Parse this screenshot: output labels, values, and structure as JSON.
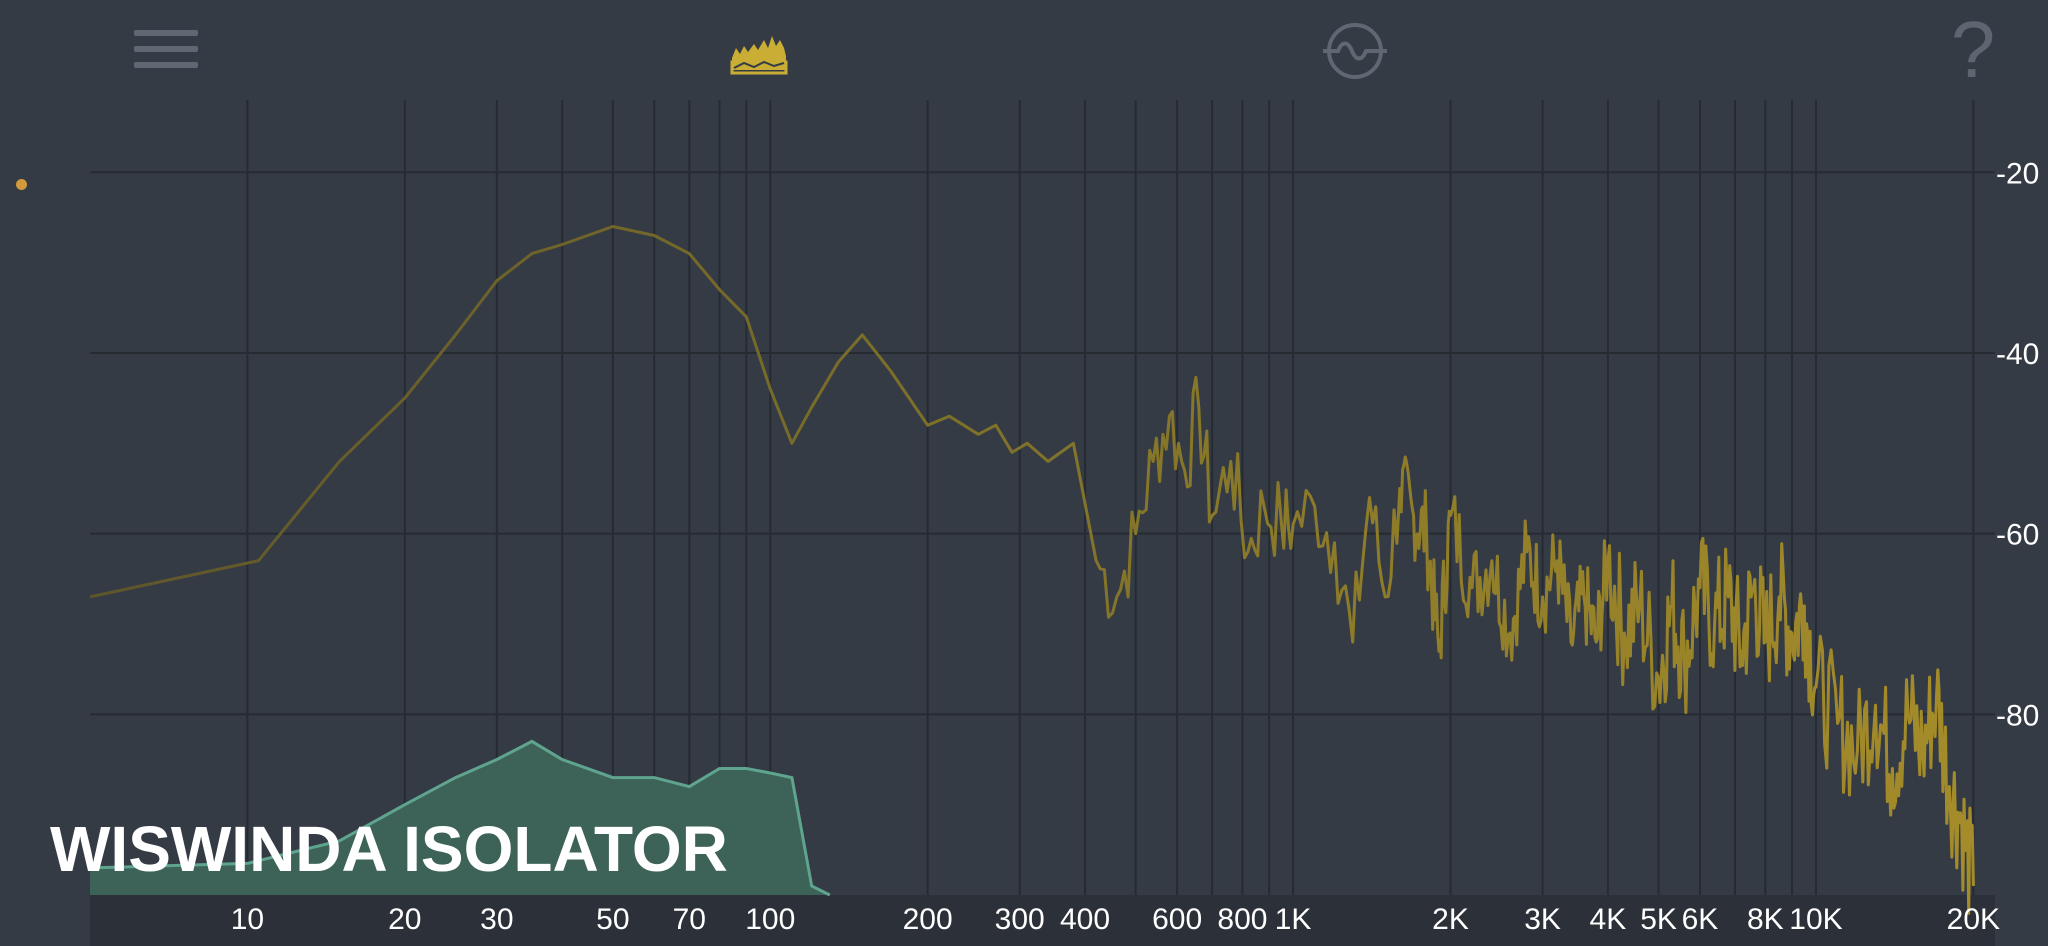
{
  "toolbar": {
    "menu_icon": "hamburger-menu-icon",
    "spectrum_icon": "spectrum-analyzer-icon",
    "wave_icon": "wave-circle-icon",
    "help_icon": "help-icon",
    "help_glyph": "?",
    "accent_color": "#c9ad34"
  },
  "brand": {
    "text": "WISWINDA ISOLATOR"
  },
  "chart_data": {
    "type": "area",
    "title": "",
    "xlabel": "",
    "ylabel": "",
    "x_scale": "log",
    "xlim": [
      5,
      22000
    ],
    "ylim": [
      -100,
      -12
    ],
    "x_ticks": [
      {
        "value": 10,
        "label": "10"
      },
      {
        "value": 20,
        "label": "20"
      },
      {
        "value": 30,
        "label": "30"
      },
      {
        "value": 50,
        "label": "50"
      },
      {
        "value": 70,
        "label": "70"
      },
      {
        "value": 100,
        "label": "100"
      },
      {
        "value": 200,
        "label": "200"
      },
      {
        "value": 300,
        "label": "300"
      },
      {
        "value": 400,
        "label": "400"
      },
      {
        "value": 600,
        "label": "600"
      },
      {
        "value": 800,
        "label": "800"
      },
      {
        "value": 1000,
        "label": "1K"
      },
      {
        "value": 2000,
        "label": "2K"
      },
      {
        "value": 3000,
        "label": "3K"
      },
      {
        "value": 4000,
        "label": "4K"
      },
      {
        "value": 5000,
        "label": "5K"
      },
      {
        "value": 6000,
        "label": "6K"
      },
      {
        "value": 8000,
        "label": "8K"
      },
      {
        "value": 10000,
        "label": "10K"
      },
      {
        "value": 20000,
        "label": "20K"
      }
    ],
    "x_minor_gridlines": [
      40,
      60,
      80,
      90,
      500,
      700,
      900,
      7000,
      9000
    ],
    "y_ticks": [
      {
        "value": -20,
        "label": "-20"
      },
      {
        "value": -40,
        "label": "-40"
      },
      {
        "value": -60,
        "label": "-60"
      },
      {
        "value": -80,
        "label": "-80"
      }
    ],
    "grid": true,
    "series": [
      {
        "color": "#7d7029",
        "x": [
          5,
          10.5,
          15,
          20,
          25,
          30,
          35,
          40,
          50,
          60,
          70,
          80,
          90,
          100,
          110,
          120,
          135,
          150,
          170,
          200,
          220,
          250,
          270,
          290,
          310,
          340,
          380,
          420,
          460,
          500,
          540,
          580,
          620,
          660,
          700,
          760,
          820,
          880,
          950,
          1000,
          1100,
          1200,
          1300,
          1400,
          1500,
          1600,
          1700,
          1800,
          1900,
          2000,
          2200,
          2400,
          2600,
          2800,
          3000,
          3200,
          3400,
          3600,
          3800,
          4000,
          4300,
          4600,
          5000,
          5300,
          5600,
          6000,
          6400,
          6800,
          7200,
          7600,
          8000,
          8500,
          9000,
          9500,
          10000,
          11000,
          12000,
          13000,
          14000,
          15000,
          16000,
          17000,
          18000,
          19000,
          20000
        ],
        "values": [
          -67,
          -63,
          -52,
          -45,
          -38,
          -32,
          -29,
          -28,
          -26,
          -27,
          -29,
          -33,
          -36,
          -44,
          -50,
          -46,
          -41,
          -38,
          -42,
          -48,
          -47,
          -49,
          -48,
          -51,
          -50,
          -52,
          -50,
          -63,
          -67,
          -60,
          -52,
          -47,
          -53,
          -46,
          -58,
          -52,
          -62,
          -57,
          -59,
          -59,
          -57,
          -61,
          -72,
          -56,
          -67,
          -55,
          -58,
          -60,
          -73,
          -58,
          -66,
          -63,
          -71,
          -62,
          -67,
          -63,
          -72,
          -67,
          -72,
          -63,
          -71,
          -68,
          -76,
          -68,
          -74,
          -66,
          -70,
          -67,
          -73,
          -66,
          -72,
          -67,
          -71,
          -68,
          -77,
          -81,
          -84,
          -79,
          -86,
          -80,
          -84,
          -78,
          -88,
          -92,
          -99
        ]
      },
      {
        "color": "#5fa48e",
        "fill": "#3e6458",
        "x": [
          5,
          10,
          15,
          20,
          25,
          30,
          35,
          40,
          50,
          60,
          70,
          80,
          90,
          100,
          110,
          120,
          130
        ],
        "values": [
          -97,
          -96.5,
          -94,
          -90,
          -87,
          -85,
          -83,
          -85,
          -87,
          -87,
          -88,
          -86,
          -86,
          -86.5,
          -87,
          -99,
          -101
        ]
      }
    ]
  }
}
